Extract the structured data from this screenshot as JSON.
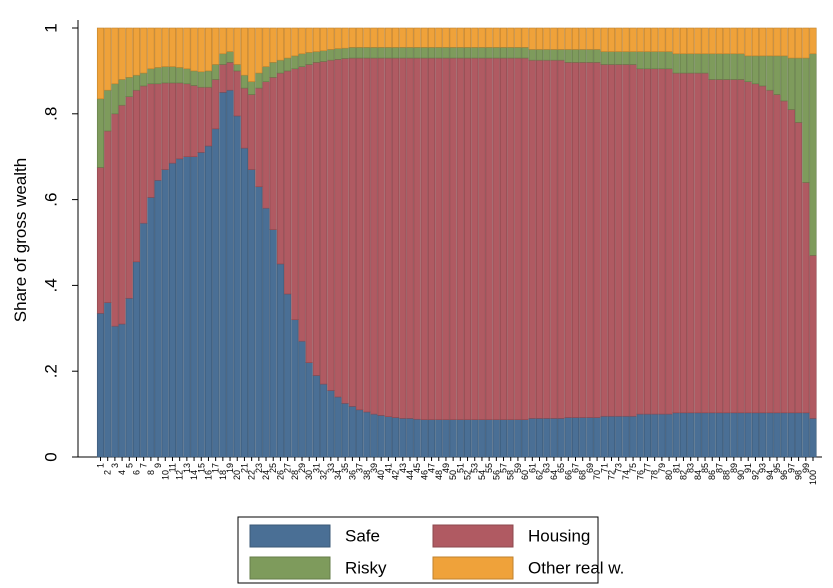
{
  "chart_data": {
    "type": "stacked_bar",
    "ylabel": "Share of gross wealth",
    "categories": [
      "1",
      "2",
      "3",
      "4",
      "5",
      "6",
      "7",
      "8",
      "9",
      "10",
      "11",
      "12",
      "13",
      "14",
      "15",
      "16",
      "17",
      "18",
      "19",
      "20",
      "21",
      "22",
      "23",
      "24",
      "25",
      "26",
      "27",
      "28",
      "29",
      "30",
      "31",
      "32",
      "33",
      "34",
      "35",
      "36",
      "37",
      "38",
      "39",
      "40",
      "41",
      "42",
      "43",
      "44",
      "45",
      "46",
      "47",
      "48",
      "49",
      "50",
      "51",
      "52",
      "53",
      "54",
      "55",
      "56",
      "57",
      "58",
      "59",
      "60",
      "61",
      "62",
      "63",
      "64",
      "65",
      "66",
      "67",
      "68",
      "69",
      "70",
      "71",
      "72",
      "73",
      "74",
      "75",
      "76",
      "77",
      "78",
      "79",
      "80",
      "81",
      "82",
      "83",
      "84",
      "85",
      "86",
      "87",
      "88",
      "89",
      "90",
      "91",
      "92",
      "93",
      "94",
      "95",
      "96",
      "97",
      "98",
      "99",
      "100"
    ],
    "ylim": [
      0,
      1.03
    ],
    "yticks": [
      0,
      {
        "value": 0.2,
        "label": ".2"
      },
      {
        "value": 0.4,
        "label": ".4"
      },
      {
        "value": 0.6,
        "label": ".6"
      },
      {
        "value": 0.8,
        "label": ".8"
      },
      1
    ],
    "series": [
      {
        "name": "Safe",
        "color": "#4a6f95",
        "values": [
          0.335,
          0.36,
          0.305,
          0.31,
          0.37,
          0.455,
          0.545,
          0.605,
          0.645,
          0.67,
          0.685,
          0.695,
          0.7,
          0.7,
          0.71,
          0.725,
          0.765,
          0.85,
          0.855,
          0.795,
          0.72,
          0.67,
          0.63,
          0.58,
          0.53,
          0.45,
          0.38,
          0.32,
          0.27,
          0.22,
          0.19,
          0.17,
          0.155,
          0.14,
          0.125,
          0.118,
          0.11,
          0.105,
          0.1,
          0.097,
          0.094,
          0.092,
          0.09,
          0.09,
          0.088,
          0.087,
          0.087,
          0.087,
          0.087,
          0.087,
          0.087,
          0.087,
          0.087,
          0.087,
          0.087,
          0.087,
          0.087,
          0.087,
          0.087,
          0.087,
          0.09,
          0.09,
          0.09,
          0.09,
          0.09,
          0.092,
          0.092,
          0.092,
          0.092,
          0.092,
          0.095,
          0.095,
          0.095,
          0.095,
          0.095,
          0.1,
          0.1,
          0.1,
          0.1,
          0.1,
          0.103,
          0.103,
          0.103,
          0.103,
          0.103,
          0.103,
          0.103,
          0.103,
          0.103,
          0.103,
          0.103,
          0.103,
          0.103,
          0.103,
          0.103,
          0.103,
          0.103,
          0.103,
          0.103,
          0.09
        ]
      },
      {
        "name": "Housing",
        "color": "#b05a62",
        "values": [
          0.34,
          0.4,
          0.495,
          0.51,
          0.47,
          0.4,
          0.32,
          0.265,
          0.225,
          0.202,
          0.187,
          0.177,
          0.17,
          0.166,
          0.152,
          0.137,
          0.115,
          0.065,
          0.065,
          0.105,
          0.14,
          0.175,
          0.23,
          0.295,
          0.355,
          0.445,
          0.52,
          0.585,
          0.64,
          0.695,
          0.73,
          0.752,
          0.77,
          0.787,
          0.804,
          0.812,
          0.82,
          0.825,
          0.83,
          0.833,
          0.836,
          0.838,
          0.84,
          0.84,
          0.842,
          0.843,
          0.843,
          0.843,
          0.843,
          0.843,
          0.843,
          0.843,
          0.843,
          0.843,
          0.843,
          0.843,
          0.843,
          0.843,
          0.843,
          0.843,
          0.835,
          0.835,
          0.835,
          0.835,
          0.835,
          0.828,
          0.828,
          0.828,
          0.828,
          0.828,
          0.82,
          0.82,
          0.82,
          0.82,
          0.82,
          0.805,
          0.805,
          0.805,
          0.805,
          0.805,
          0.792,
          0.792,
          0.792,
          0.792,
          0.792,
          0.777,
          0.777,
          0.777,
          0.777,
          0.777,
          0.772,
          0.767,
          0.762,
          0.752,
          0.742,
          0.727,
          0.707,
          0.677,
          0.537,
          0.38
        ]
      },
      {
        "name": "Risky",
        "color": "#7e9b5c",
        "values": [
          0.16,
          0.095,
          0.07,
          0.06,
          0.045,
          0.035,
          0.03,
          0.035,
          0.038,
          0.038,
          0.038,
          0.036,
          0.035,
          0.034,
          0.036,
          0.038,
          0.035,
          0.025,
          0.025,
          0.015,
          0.03,
          0.03,
          0.035,
          0.035,
          0.035,
          0.03,
          0.03,
          0.03,
          0.03,
          0.028,
          0.025,
          0.025,
          0.025,
          0.025,
          0.024,
          0.025,
          0.025,
          0.025,
          0.025,
          0.025,
          0.025,
          0.025,
          0.025,
          0.025,
          0.025,
          0.025,
          0.025,
          0.025,
          0.025,
          0.025,
          0.025,
          0.025,
          0.025,
          0.025,
          0.025,
          0.025,
          0.025,
          0.025,
          0.025,
          0.025,
          0.025,
          0.025,
          0.025,
          0.025,
          0.025,
          0.03,
          0.03,
          0.03,
          0.03,
          0.03,
          0.03,
          0.03,
          0.03,
          0.03,
          0.03,
          0.04,
          0.04,
          0.04,
          0.04,
          0.04,
          0.045,
          0.045,
          0.045,
          0.045,
          0.045,
          0.06,
          0.06,
          0.06,
          0.06,
          0.06,
          0.06,
          0.065,
          0.07,
          0.08,
          0.09,
          0.105,
          0.12,
          0.15,
          0.29,
          0.47
        ]
      },
      {
        "name": "Other real w.",
        "color": "#efa23a",
        "values": [
          0.165,
          0.145,
          0.13,
          0.12,
          0.115,
          0.11,
          0.105,
          0.095,
          0.092,
          0.09,
          0.09,
          0.092,
          0.095,
          0.1,
          0.102,
          0.1,
          0.085,
          0.06,
          0.055,
          0.085,
          0.11,
          0.125,
          0.105,
          0.09,
          0.08,
          0.075,
          0.07,
          0.065,
          0.06,
          0.057,
          0.055,
          0.053,
          0.05,
          0.048,
          0.047,
          0.045,
          0.045,
          0.045,
          0.045,
          0.045,
          0.045,
          0.045,
          0.045,
          0.045,
          0.045,
          0.045,
          0.045,
          0.045,
          0.045,
          0.045,
          0.045,
          0.045,
          0.045,
          0.045,
          0.045,
          0.045,
          0.045,
          0.045,
          0.045,
          0.045,
          0.05,
          0.05,
          0.05,
          0.05,
          0.05,
          0.05,
          0.05,
          0.05,
          0.05,
          0.05,
          0.055,
          0.055,
          0.055,
          0.055,
          0.055,
          0.055,
          0.055,
          0.055,
          0.055,
          0.055,
          0.06,
          0.06,
          0.06,
          0.06,
          0.06,
          0.06,
          0.06,
          0.06,
          0.06,
          0.06,
          0.065,
          0.065,
          0.065,
          0.065,
          0.065,
          0.065,
          0.07,
          0.07,
          0.07,
          0.06
        ]
      }
    ]
  }
}
